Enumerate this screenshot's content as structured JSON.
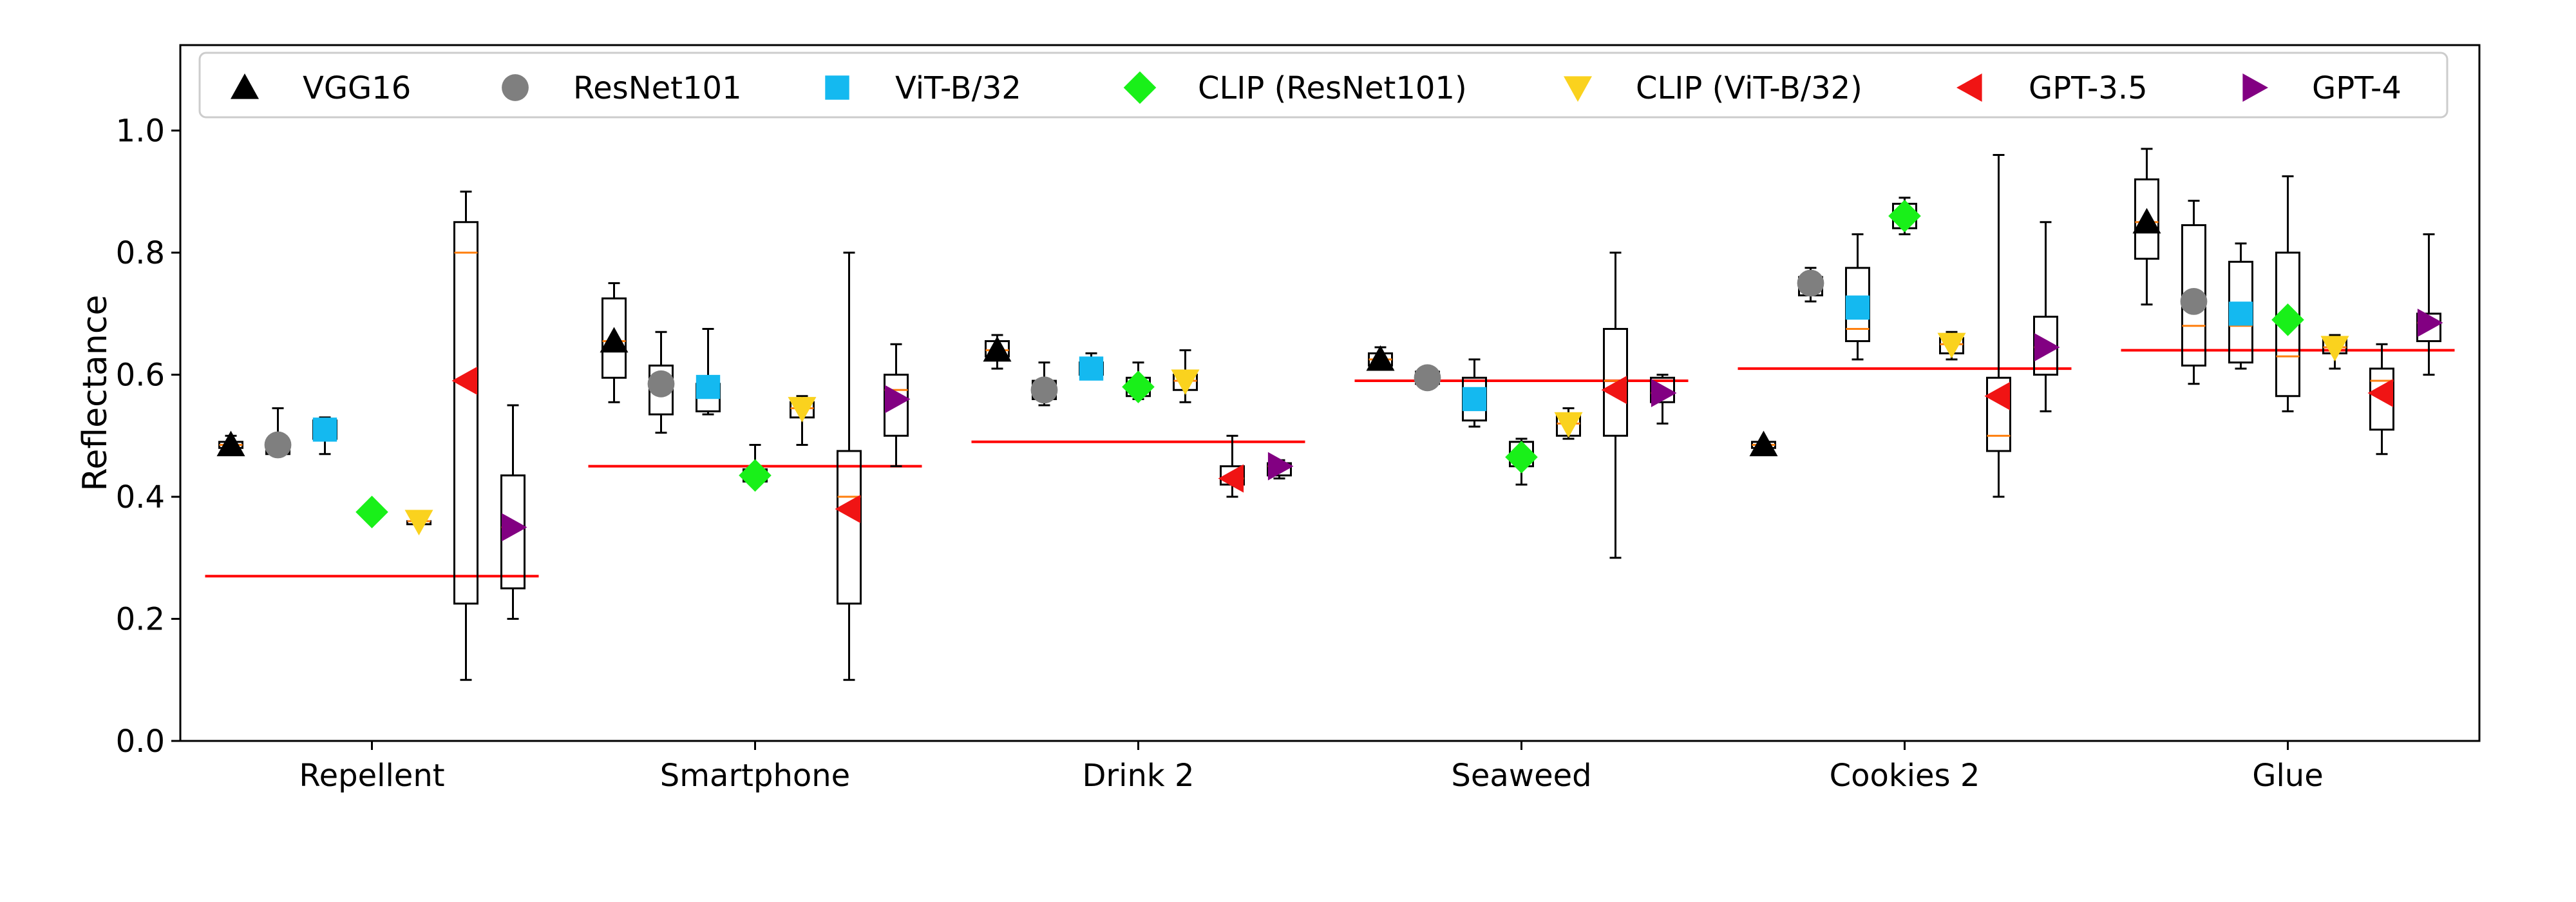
{
  "chart_data": {
    "type": "box",
    "ylabel": "Reflectance",
    "xlabel": "",
    "title": "",
    "ylim": [
      0.0,
      1.14
    ],
    "yticks": [
      "0.0",
      "0.2",
      "0.4",
      "0.6",
      "0.8",
      "1.0"
    ],
    "categories": [
      "Repellent",
      "Smartphone",
      "Drink 2",
      "Seaweed",
      "Cookies 2",
      "Glue"
    ],
    "legend_position": "top",
    "series": [
      {
        "name": "VGG16",
        "marker": "triangle-up",
        "color": "#000000",
        "values": [
          0.485,
          0.655,
          0.64,
          0.625,
          0.485,
          0.85
        ],
        "boxes": [
          [
            0.48,
            0.48,
            0.485,
            0.49,
            0.5
          ],
          [
            0.555,
            0.595,
            0.655,
            0.725,
            0.75
          ],
          [
            0.61,
            0.63,
            0.64,
            0.655,
            0.665
          ],
          [
            0.61,
            0.615,
            0.625,
            0.635,
            0.645
          ],
          [
            0.475,
            0.48,
            0.485,
            0.49,
            0.49
          ],
          [
            0.715,
            0.79,
            0.85,
            0.92,
            0.97
          ]
        ]
      },
      {
        "name": "ResNet101",
        "marker": "circle",
        "color": "#7f7f7f",
        "values": [
          0.485,
          0.585,
          0.575,
          0.595,
          0.75,
          0.72
        ],
        "boxes": [
          [
            0.47,
            0.47,
            0.48,
            0.49,
            0.545
          ],
          [
            0.505,
            0.535,
            0.575,
            0.615,
            0.67
          ],
          [
            0.55,
            0.56,
            0.575,
            0.59,
            0.62
          ],
          [
            0.58,
            0.585,
            0.595,
            0.605,
            0.61
          ],
          [
            0.72,
            0.73,
            0.745,
            0.76,
            0.775
          ],
          [
            0.585,
            0.615,
            0.68,
            0.845,
            0.885
          ]
        ]
      },
      {
        "name": "ViT-B/32",
        "marker": "square",
        "color": "#14b9f0",
        "values": [
          0.51,
          0.58,
          0.61,
          0.56,
          0.71,
          0.7
        ],
        "boxes": [
          [
            0.47,
            0.495,
            0.51,
            0.525,
            0.53
          ],
          [
            0.535,
            0.54,
            0.57,
            0.585,
            0.675
          ],
          [
            0.595,
            0.6,
            0.61,
            0.62,
            0.635
          ],
          [
            0.515,
            0.525,
            0.565,
            0.595,
            0.625
          ],
          [
            0.625,
            0.655,
            0.675,
            0.775,
            0.83
          ],
          [
            0.61,
            0.62,
            0.68,
            0.785,
            0.815
          ]
        ]
      },
      {
        "name": "CLIP (ResNet101)",
        "marker": "diamond",
        "color": "#19f019",
        "values": [
          0.375,
          0.435,
          0.58,
          0.465,
          0.86,
          0.69
        ],
        "boxes": [
          [
            0.375,
            0.375,
            0.375,
            0.375,
            0.375
          ],
          [
            0.42,
            0.425,
            0.435,
            0.445,
            0.485
          ],
          [
            0.56,
            0.565,
            0.58,
            0.595,
            0.62
          ],
          [
            0.42,
            0.45,
            0.465,
            0.49,
            0.495
          ],
          [
            0.83,
            0.84,
            0.86,
            0.88,
            0.89
          ],
          [
            0.54,
            0.565,
            0.63,
            0.8,
            0.925
          ]
        ]
      },
      {
        "name": "CLIP (ViT-B/32)",
        "marker": "triangle-down",
        "color": "#fad21e",
        "values": [
          0.36,
          0.545,
          0.59,
          0.52,
          0.65,
          0.645
        ],
        "boxes": [
          [
            0.355,
            0.355,
            0.36,
            0.36,
            0.365
          ],
          [
            0.485,
            0.53,
            0.545,
            0.555,
            0.565
          ],
          [
            0.555,
            0.575,
            0.59,
            0.6,
            0.64
          ],
          [
            0.495,
            0.5,
            0.52,
            0.535,
            0.545
          ],
          [
            0.625,
            0.635,
            0.65,
            0.66,
            0.67
          ],
          [
            0.61,
            0.635,
            0.645,
            0.66,
            0.665
          ]
        ]
      },
      {
        "name": "GPT-3.5",
        "marker": "triangle-left",
        "color": "#f01414",
        "values": [
          0.59,
          0.38,
          0.43,
          0.575,
          0.565,
          0.57
        ],
        "boxes": [
          [
            0.1,
            0.225,
            0.8,
            0.85,
            0.9
          ],
          [
            0.1,
            0.225,
            0.4,
            0.475,
            0.8
          ],
          [
            0.4,
            0.42,
            0.43,
            0.45,
            0.5
          ],
          [
            0.3,
            0.5,
            0.59,
            0.675,
            0.8
          ],
          [
            0.4,
            0.475,
            0.5,
            0.595,
            0.96
          ],
          [
            0.47,
            0.51,
            0.59,
            0.61,
            0.65
          ]
        ]
      },
      {
        "name": "GPT-4",
        "marker": "triangle-right",
        "color": "#820082",
        "values": [
          0.35,
          0.56,
          0.45,
          0.57,
          0.645,
          0.685
        ],
        "boxes": [
          [
            0.2,
            0.25,
            0.35,
            0.435,
            0.55
          ],
          [
            0.45,
            0.5,
            0.575,
            0.6,
            0.65
          ],
          [
            0.43,
            0.435,
            0.45,
            0.455,
            0.46
          ],
          [
            0.52,
            0.555,
            0.57,
            0.595,
            0.6
          ],
          [
            0.54,
            0.6,
            0.645,
            0.695,
            0.85
          ],
          [
            0.6,
            0.655,
            0.685,
            0.7,
            0.83
          ]
        ]
      }
    ],
    "baselines": [
      0.27,
      0.45,
      0.49,
      0.59,
      0.61,
      0.64
    ],
    "baseline_color": "#ff0000",
    "median_line_color": "#ff7f0e",
    "grid": false
  }
}
